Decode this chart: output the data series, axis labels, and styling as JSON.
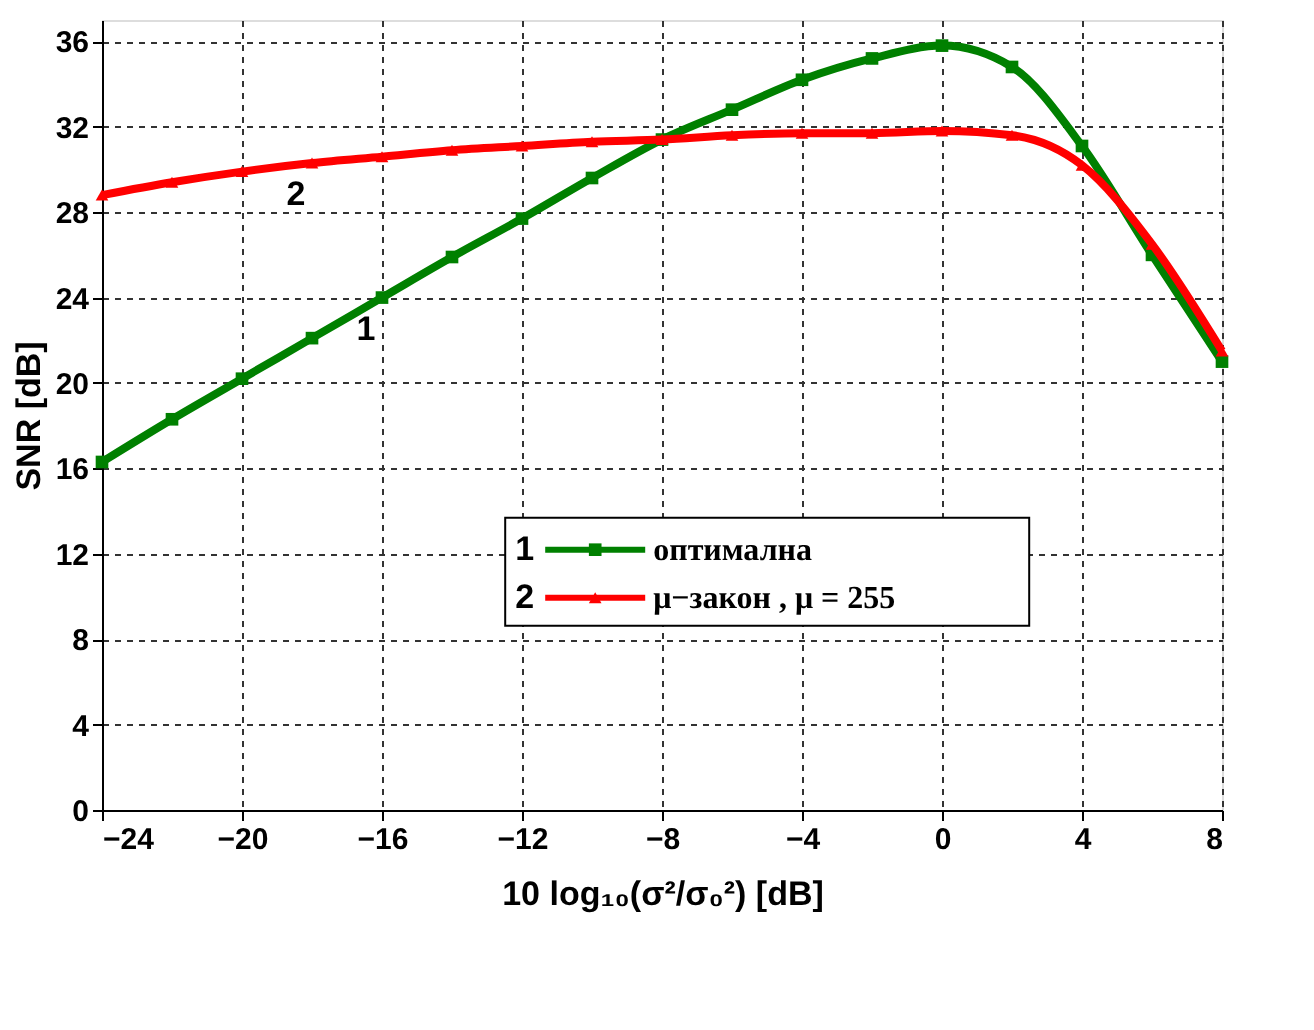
{
  "chart_data": {
    "type": "line",
    "xlabel": "10 log₁₀(σ²/σ₀²) [dB]",
    "ylabel": "SNR [dB]",
    "x": [
      -24,
      -22,
      -20,
      -18,
      -16,
      -14,
      -12,
      -10,
      -8,
      -6,
      -4,
      -2,
      0,
      2,
      4,
      6,
      8
    ],
    "series": [
      {
        "name": "оптимална",
        "color": "#008000",
        "marker": "square",
        "values": [
          16.3,
          18.3,
          20.2,
          22.1,
          24.0,
          25.9,
          27.7,
          29.6,
          31.4,
          32.8,
          34.2,
          35.2,
          35.8,
          34.8,
          31.1,
          26.0,
          21.0
        ]
      },
      {
        "name": "μ−закон  , μ = 255",
        "color": "#ff0000",
        "marker": "triangle",
        "values": [
          28.8,
          29.4,
          29.9,
          30.3,
          30.6,
          30.9,
          31.1,
          31.3,
          31.4,
          31.6,
          31.7,
          31.7,
          31.8,
          31.6,
          30.2,
          26.5,
          21.5
        ]
      }
    ],
    "annotations": [
      {
        "text": "1",
        "x": -16,
        "y": 24.0
      },
      {
        "text": "2",
        "x": -18,
        "y": 30.3
      }
    ],
    "xlim": [
      -24,
      8
    ],
    "xticks": [
      -24,
      -20,
      -16,
      -12,
      -8,
      -4,
      0,
      4,
      8
    ],
    "ylim": [
      0,
      37
    ],
    "yticks": [
      0,
      4,
      8,
      12,
      16,
      20,
      24,
      28,
      32,
      36
    ],
    "grid": true,
    "legend": "center",
    "line_style": "solid"
  }
}
